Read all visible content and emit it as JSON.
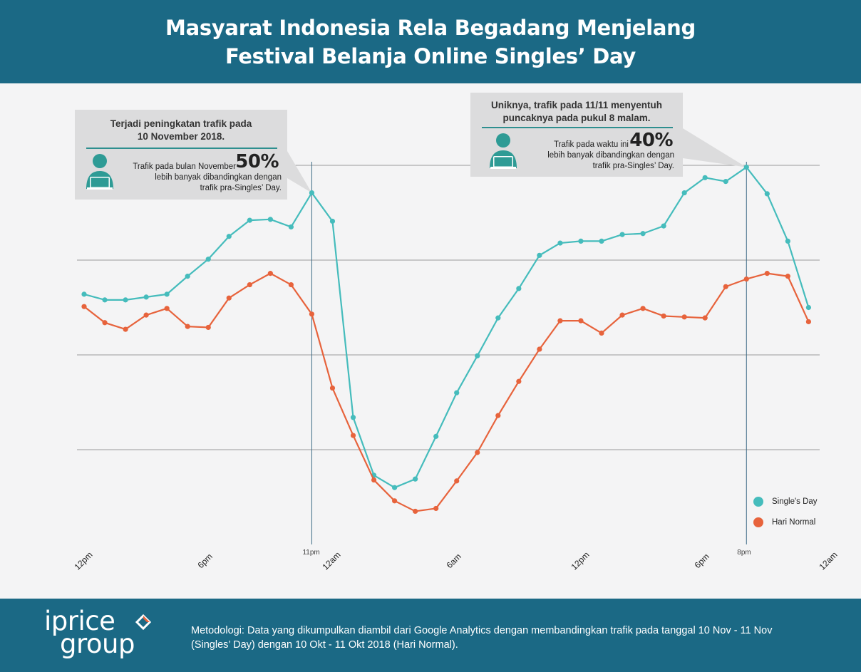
{
  "header": {
    "title_line1": "Masyarat Indonesia Rela Begadang Menjelang",
    "title_line2": "Festival Belanja Online Singles’ Day"
  },
  "callout_left": {
    "title_line1": "Terjadi peningkatan trafik pada",
    "title_line2": "10 November 2018.",
    "percent": "50%",
    "text_line1": "Trafik pada bulan November",
    "text_line2": "lebih banyak dibandingkan dengan",
    "text_line3": "trafik pra-Singles’ Day.",
    "icon": "person-laptop-icon"
  },
  "callout_right": {
    "title_line1": "Uniknya, trafik pada 11/11 menyentuh",
    "title_line2": "puncaknya pada pukul 8 malam.",
    "percent": "40%",
    "text_line1": "Trafik pada waktu ini",
    "text_line2": "lebih banyak dibandingkan dengan",
    "text_line3": "trafik pra-Singles’ Day.",
    "icon": "person-laptop-icon"
  },
  "legend": {
    "singles_day": "Single's Day",
    "hari_normal": "Hari Normal"
  },
  "marker_labels": {
    "left": "11pm",
    "right": "8pm"
  },
  "footer": {
    "logo_line1": "iprice",
    "logo_line2": "group",
    "methodology_line1": "Metodologi: Data yang dikumpulkan diambil dari Google Analytics dengan membandingkan trafik pada tanggal 10 Nov - 11 Nov",
    "methodology_line2": "(Singles’ Day) dengan 10 Okt - 11 Okt 2018 (Hari Normal)."
  },
  "colors": {
    "header_bg": "#1b6985",
    "singles_day": "#45bcbc",
    "hari_normal": "#e7633c",
    "grid": "#9a9a9a",
    "callout_bg": "#dcdcdd",
    "icon": "#2e9b95"
  },
  "chart_data": {
    "type": "line",
    "x_tick_labels": [
      "12pm",
      "6pm",
      "12am",
      "6am",
      "12pm",
      "6pm",
      "12am"
    ],
    "x_tick_index": [
      0,
      6,
      12,
      18,
      24,
      30,
      36
    ],
    "vertical_markers": [
      {
        "index": 11,
        "label": "11pm"
      },
      {
        "index": 32,
        "label": "8pm"
      }
    ],
    "y_range": [
      0,
      4
    ],
    "gridlines_y": [
      1,
      2,
      3,
      4
    ],
    "series": [
      {
        "name": "Single's Day",
        "color": "#45bcbc",
        "values": [
          2.64,
          2.58,
          2.58,
          2.61,
          2.64,
          2.83,
          3.01,
          3.25,
          3.42,
          3.43,
          3.35,
          3.71,
          3.41,
          1.34,
          0.73,
          0.6,
          0.69,
          1.14,
          1.6,
          1.99,
          2.39,
          2.7,
          3.05,
          3.18,
          3.2,
          3.2,
          3.27,
          3.28,
          3.36,
          3.71,
          3.87,
          3.83,
          3.98,
          3.7,
          3.2,
          2.5
        ]
      },
      {
        "name": "Hari Normal",
        "color": "#e7633c",
        "values": [
          2.51,
          2.34,
          2.27,
          2.42,
          2.49,
          2.3,
          2.29,
          2.6,
          2.74,
          2.86,
          2.74,
          2.43,
          1.65,
          1.15,
          0.68,
          0.46,
          0.35,
          0.38,
          0.67,
          0.97,
          1.36,
          1.72,
          2.06,
          2.36,
          2.36,
          2.23,
          2.42,
          2.49,
          2.41,
          2.4,
          2.39,
          2.72,
          2.8,
          2.86,
          2.83,
          2.35
        ]
      }
    ],
    "legend_position": "bottom-right",
    "grid": true
  }
}
